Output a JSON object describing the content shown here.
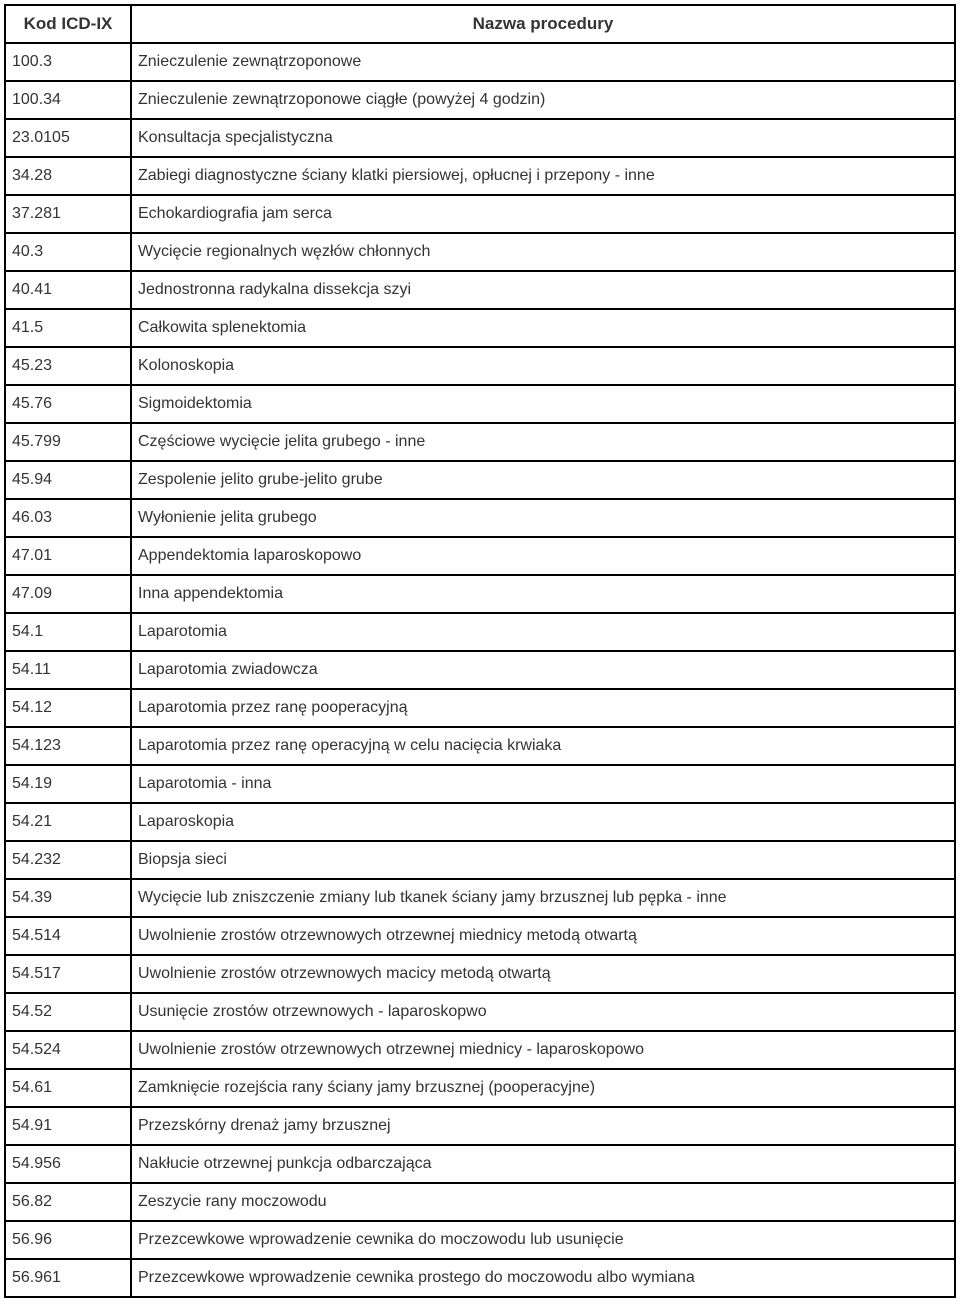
{
  "table": {
    "columns": [
      "Kod ICD-IX",
      "Nazwa procedury"
    ],
    "rows": [
      [
        "100.3",
        "Znieczulenie zewnątrzoponowe"
      ],
      [
        "100.34",
        "Znieczulenie zewnątrzoponowe ciągłe (powyżej 4 godzin)"
      ],
      [
        "23.0105",
        "Konsultacja specjalistyczna"
      ],
      [
        "34.28",
        "Zabiegi diagnostyczne ściany klatki piersiowej, opłucnej i przepony - inne"
      ],
      [
        "37.281",
        "Echokardiografia jam serca"
      ],
      [
        "40.3",
        "Wycięcie regionalnych węzłów chłonnych"
      ],
      [
        "40.41",
        "Jednostronna radykalna dissekcja szyi"
      ],
      [
        "41.5",
        "Całkowita splenektomia"
      ],
      [
        "45.23",
        "Kolonoskopia"
      ],
      [
        "45.76",
        "Sigmoidektomia"
      ],
      [
        "45.799",
        "Częściowe wycięcie jelita grubego - inne"
      ],
      [
        "45.94",
        "Zespolenie jelito grube-jelito grube"
      ],
      [
        "46.03",
        "Wyłonienie jelita grubego"
      ],
      [
        "47.01",
        "Appendektomia laparoskopowo"
      ],
      [
        "47.09",
        "Inna appendektomia"
      ],
      [
        "54.1",
        "Laparotomia"
      ],
      [
        "54.11",
        "Laparotomia zwiadowcza"
      ],
      [
        "54.12",
        "Laparotomia przez ranę pooperacyjną"
      ],
      [
        "54.123",
        "Laparotomia przez ranę operacyjną w celu nacięcia krwiaka"
      ],
      [
        "54.19",
        "Laparotomia - inna"
      ],
      [
        "54.21",
        "Laparoskopia"
      ],
      [
        "54.232",
        "Biopsja sieci"
      ],
      [
        "54.39",
        "Wycięcie lub zniszczenie zmiany lub tkanek ściany jamy brzusznej lub pępka - inne"
      ],
      [
        "54.514",
        "Uwolnienie zrostów otrzewnowych otrzewnej miednicy metodą otwartą"
      ],
      [
        "54.517",
        "Uwolnienie zrostów otrzewnowych macicy metodą otwartą"
      ],
      [
        "54.52",
        "Usunięcie zrostów otrzewnowych - laparoskopwo"
      ],
      [
        "54.524",
        "Uwolnienie zrostów otrzewnowych otrzewnej miednicy - laparoskopowo"
      ],
      [
        "54.61",
        "Zamknięcie rozejścia rany ściany jamy brzusznej (pooperacyjne)"
      ],
      [
        "54.91",
        "Przezskórny drenaż jamy brzusznej"
      ],
      [
        "54.956",
        "Nakłucie otrzewnej punkcja odbarczająca"
      ],
      [
        "56.82",
        "Zeszycie rany moczowodu"
      ],
      [
        "56.96",
        "Przezcewkowe wprowadzenie cewnika do moczowodu lub usunięcie"
      ],
      [
        "56.961",
        "Przezcewkowe wprowadzenie cewnika prostego do moczowodu albo wymiana"
      ]
    ],
    "text_color": "#333333",
    "border_color": "#000000",
    "background_color": "#ffffff",
    "font_size": 16,
    "header_font_size": 17,
    "code_column_width": 126
  }
}
